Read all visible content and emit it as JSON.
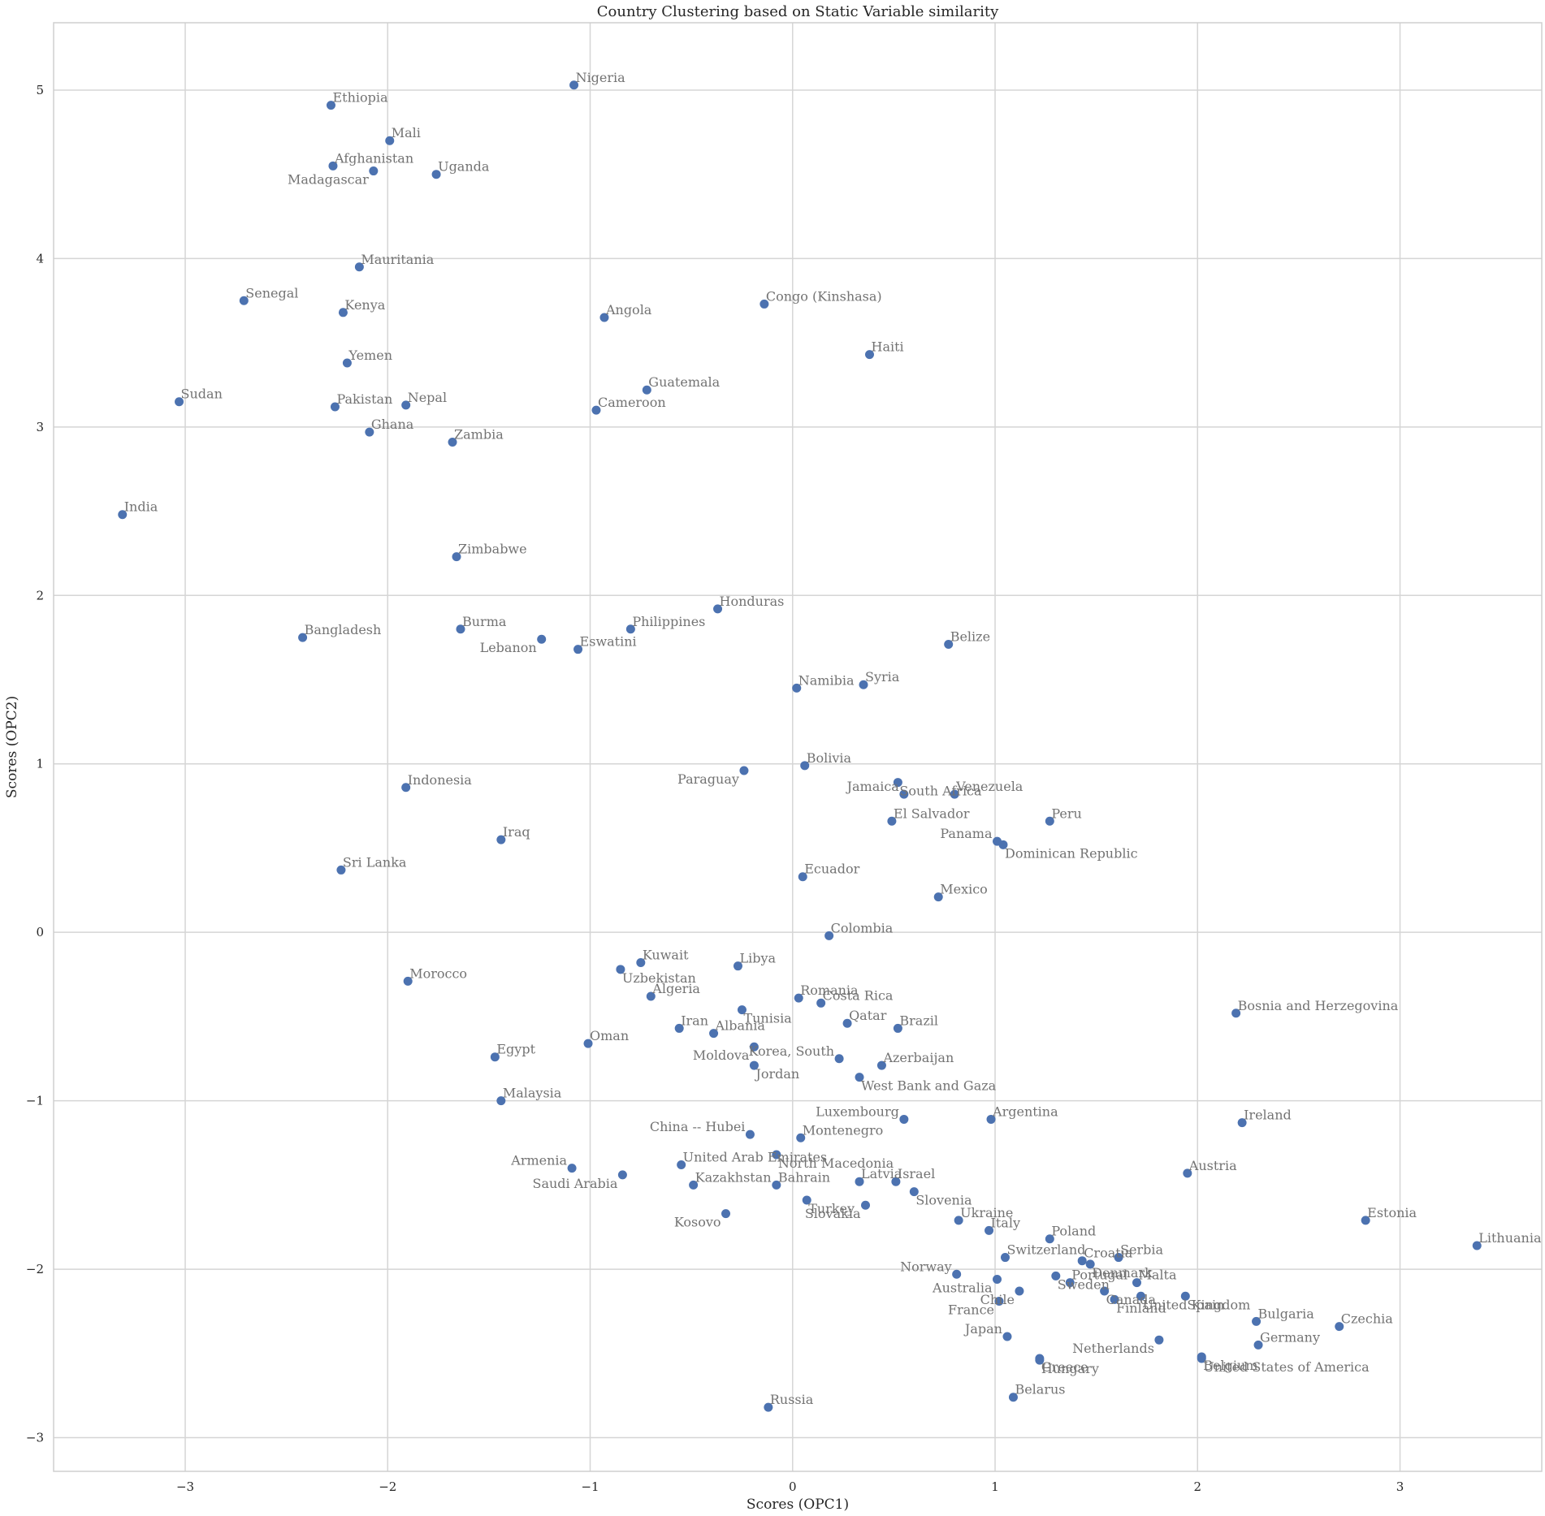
{
  "chart_data": {
    "type": "scatter",
    "title": "Country Clustering based on Static Variable similarity",
    "xlabel": "Scores (OPC1)",
    "ylabel": "Scores (OPC2)",
    "xlim": [
      -3.65,
      3.7
    ],
    "ylim": [
      -3.2,
      5.4
    ],
    "xticks": [
      -3,
      -2,
      -1,
      0,
      1,
      2,
      3
    ],
    "yticks": [
      -3,
      -2,
      -1,
      0,
      1,
      2,
      3,
      4,
      5
    ],
    "xtick_labels": [
      "−3",
      "−2",
      "−1",
      "0",
      "1",
      "2",
      "3"
    ],
    "ytick_labels": [
      "−3",
      "−2",
      "−1",
      "0",
      "1",
      "2",
      "3",
      "4",
      "5"
    ],
    "grid": true,
    "marker_color": "#4c72b0",
    "label_color": "#737373",
    "points": [
      {
        "label": "Nigeria",
        "x": -1.08,
        "y": 5.03
      },
      {
        "label": "Ethiopia",
        "x": -2.28,
        "y": 4.91
      },
      {
        "label": "Mali",
        "x": -1.99,
        "y": 4.7
      },
      {
        "label": "Afghanistan",
        "x": -2.27,
        "y": 4.55
      },
      {
        "label": "Madagascar",
        "x": -2.07,
        "y": 4.52
      },
      {
        "label": "Uganda",
        "x": -1.76,
        "y": 4.5
      },
      {
        "label": "Mauritania",
        "x": -2.14,
        "y": 3.95
      },
      {
        "label": "Senegal",
        "x": -2.71,
        "y": 3.75
      },
      {
        "label": "Kenya",
        "x": -2.22,
        "y": 3.68
      },
      {
        "label": "Angola",
        "x": -0.93,
        "y": 3.65
      },
      {
        "label": "Congo (Kinshasa)",
        "x": -0.14,
        "y": 3.73
      },
      {
        "label": "Haiti",
        "x": 0.38,
        "y": 3.43
      },
      {
        "label": "Yemen",
        "x": -2.2,
        "y": 3.38
      },
      {
        "label": "Guatemala",
        "x": -0.72,
        "y": 3.22
      },
      {
        "label": "Sudan",
        "x": -3.03,
        "y": 3.15
      },
      {
        "label": "Pakistan",
        "x": -2.26,
        "y": 3.12
      },
      {
        "label": "Nepal",
        "x": -1.91,
        "y": 3.13
      },
      {
        "label": "Cameroon",
        "x": -0.97,
        "y": 3.1
      },
      {
        "label": "Ghana",
        "x": -2.09,
        "y": 2.97
      },
      {
        "label": "Zambia",
        "x": -1.68,
        "y": 2.91
      },
      {
        "label": "India",
        "x": -3.31,
        "y": 2.48
      },
      {
        "label": "Zimbabwe",
        "x": -1.66,
        "y": 2.23
      },
      {
        "label": "Honduras",
        "x": -0.37,
        "y": 1.92
      },
      {
        "label": "Bangladesh",
        "x": -2.42,
        "y": 1.75
      },
      {
        "label": "Burma",
        "x": -1.64,
        "y": 1.8
      },
      {
        "label": "Philippines",
        "x": -0.8,
        "y": 1.8
      },
      {
        "label": "Lebanon",
        "x": -1.24,
        "y": 1.74
      },
      {
        "label": "Eswatini",
        "x": -1.06,
        "y": 1.68
      },
      {
        "label": "Belize",
        "x": 0.77,
        "y": 1.71
      },
      {
        "label": "Syria",
        "x": 0.35,
        "y": 1.47
      },
      {
        "label": "Namibia",
        "x": 0.02,
        "y": 1.45
      },
      {
        "label": "Bolivia",
        "x": 0.06,
        "y": 0.99
      },
      {
        "label": "Paraguay",
        "x": -0.24,
        "y": 0.96
      },
      {
        "label": "South Africa",
        "x": 0.52,
        "y": 0.89
      },
      {
        "label": "Jamaica",
        "x": 0.55,
        "y": 0.82
      },
      {
        "label": "Venezuela",
        "x": 0.8,
        "y": 0.82
      },
      {
        "label": "El Salvador",
        "x": 0.49,
        "y": 0.66
      },
      {
        "label": "Peru",
        "x": 1.27,
        "y": 0.66
      },
      {
        "label": "Indonesia",
        "x": -1.91,
        "y": 0.86
      },
      {
        "label": "Iraq",
        "x": -1.44,
        "y": 0.55
      },
      {
        "label": "Panama",
        "x": 1.01,
        "y": 0.54
      },
      {
        "label": "Dominican Republic",
        "x": 1.04,
        "y": 0.52
      },
      {
        "label": "Sri Lanka",
        "x": -2.23,
        "y": 0.37
      },
      {
        "label": "Ecuador",
        "x": 0.05,
        "y": 0.33
      },
      {
        "label": "Mexico",
        "x": 0.72,
        "y": 0.21
      },
      {
        "label": "Colombia",
        "x": 0.18,
        "y": -0.02
      },
      {
        "label": "Kuwait",
        "x": -0.75,
        "y": -0.18
      },
      {
        "label": "Libya",
        "x": -0.27,
        "y": -0.2
      },
      {
        "label": "Uzbekistan",
        "x": -0.85,
        "y": -0.22
      },
      {
        "label": "Morocco",
        "x": -1.9,
        "y": -0.29
      },
      {
        "label": "Romania",
        "x": 0.03,
        "y": -0.39
      },
      {
        "label": "Costa Rica",
        "x": 0.14,
        "y": -0.42
      },
      {
        "label": "Algeria",
        "x": -0.7,
        "y": -0.38
      },
      {
        "label": "Tunisia",
        "x": -0.25,
        "y": -0.46
      },
      {
        "label": "Bosnia and Herzegovina",
        "x": 2.19,
        "y": -0.48
      },
      {
        "label": "Qatar",
        "x": 0.27,
        "y": -0.54
      },
      {
        "label": "Brazil",
        "x": 0.52,
        "y": -0.57
      },
      {
        "label": "Iran",
        "x": -0.56,
        "y": -0.57
      },
      {
        "label": "Albania",
        "x": -0.39,
        "y": -0.6
      },
      {
        "label": "Moldova",
        "x": -0.19,
        "y": -0.68
      },
      {
        "label": "Oman",
        "x": -1.01,
        "y": -0.66
      },
      {
        "label": "Egypt",
        "x": -1.47,
        "y": -0.74
      },
      {
        "label": "Korea, South",
        "x": 0.23,
        "y": -0.75
      },
      {
        "label": "Jordan",
        "x": -0.19,
        "y": -0.79
      },
      {
        "label": "Azerbaijan",
        "x": 0.44,
        "y": -0.79
      },
      {
        "label": "West Bank and Gaza",
        "x": 0.33,
        "y": -0.86
      },
      {
        "label": "Malaysia",
        "x": -1.44,
        "y": -1.0
      },
      {
        "label": "Luxembourg",
        "x": 0.55,
        "y": -1.11
      },
      {
        "label": "Argentina",
        "x": 0.98,
        "y": -1.11
      },
      {
        "label": "Ireland",
        "x": 2.22,
        "y": -1.13
      },
      {
        "label": "China -- Hubei",
        "x": -0.21,
        "y": -1.2
      },
      {
        "label": "Montenegro",
        "x": 0.04,
        "y": -1.22
      },
      {
        "label": "North Macedonia",
        "x": -0.08,
        "y": -1.32
      },
      {
        "label": "United Arab Emirates",
        "x": -0.55,
        "y": -1.38
      },
      {
        "label": "Armenia",
        "x": -1.09,
        "y": -1.4
      },
      {
        "label": "Saudi Arabia",
        "x": -0.84,
        "y": -1.44
      },
      {
        "label": "Austria",
        "x": 1.95,
        "y": -1.43
      },
      {
        "label": "Kazakhstan",
        "x": -0.49,
        "y": -1.5
      },
      {
        "label": "Bahrain",
        "x": -0.08,
        "y": -1.5
      },
      {
        "label": "Latvia",
        "x": 0.33,
        "y": -1.48
      },
      {
        "label": "Israel",
        "x": 0.51,
        "y": -1.48
      },
      {
        "label": "Slovenia",
        "x": 0.6,
        "y": -1.54
      },
      {
        "label": "Turkey",
        "x": 0.07,
        "y": -1.59
      },
      {
        "label": "Slovakia",
        "x": 0.36,
        "y": -1.62
      },
      {
        "label": "Kosovo",
        "x": -0.33,
        "y": -1.67
      },
      {
        "label": "Ukraine",
        "x": 0.82,
        "y": -1.71
      },
      {
        "label": "Estonia",
        "x": 2.83,
        "y": -1.71
      },
      {
        "label": "Italy",
        "x": 0.97,
        "y": -1.77
      },
      {
        "label": "Poland",
        "x": 1.27,
        "y": -1.82
      },
      {
        "label": "Serbia",
        "x": 1.61,
        "y": -1.93
      },
      {
        "label": "Switzerland",
        "x": 1.05,
        "y": -1.93
      },
      {
        "label": "Croatia",
        "x": 1.43,
        "y": -1.95
      },
      {
        "label": "Denmark",
        "x": 1.47,
        "y": -1.97
      },
      {
        "label": "Lithuania",
        "x": 3.38,
        "y": -1.86
      },
      {
        "label": "Norway",
        "x": 0.81,
        "y": -2.03
      },
      {
        "label": "Sweden",
        "x": 1.3,
        "y": -2.04
      },
      {
        "label": "Portugal",
        "x": 1.37,
        "y": -2.08
      },
      {
        "label": "Australia",
        "x": 1.01,
        "y": -2.06
      },
      {
        "label": "Malta",
        "x": 1.7,
        "y": -2.08
      },
      {
        "label": "Chile",
        "x": 1.12,
        "y": -2.13
      },
      {
        "label": "Canada",
        "x": 1.54,
        "y": -2.13
      },
      {
        "label": "United Kingdom",
        "x": 1.72,
        "y": -2.16
      },
      {
        "label": "Spain",
        "x": 1.94,
        "y": -2.16
      },
      {
        "label": "France",
        "x": 1.02,
        "y": -2.19
      },
      {
        "label": "Finland",
        "x": 1.59,
        "y": -2.18
      },
      {
        "label": "Bulgaria",
        "x": 2.29,
        "y": -2.31
      },
      {
        "label": "Czechia",
        "x": 2.7,
        "y": -2.34
      },
      {
        "label": "Japan",
        "x": 1.06,
        "y": -2.4
      },
      {
        "label": "Netherlands",
        "x": 1.81,
        "y": -2.42
      },
      {
        "label": "Greece",
        "x": 1.22,
        "y": -2.53
      },
      {
        "label": "Germany",
        "x": 2.3,
        "y": -2.45
      },
      {
        "label": "Belgium",
        "x": 2.02,
        "y": -2.52
      },
      {
        "label": "Hungary",
        "x": 1.22,
        "y": -2.54
      },
      {
        "label": "United States of America",
        "x": 2.02,
        "y": -2.53
      },
      {
        "label": "Belarus",
        "x": 1.09,
        "y": -2.76
      },
      {
        "label": "Russia",
        "x": -0.12,
        "y": -2.82
      }
    ]
  }
}
